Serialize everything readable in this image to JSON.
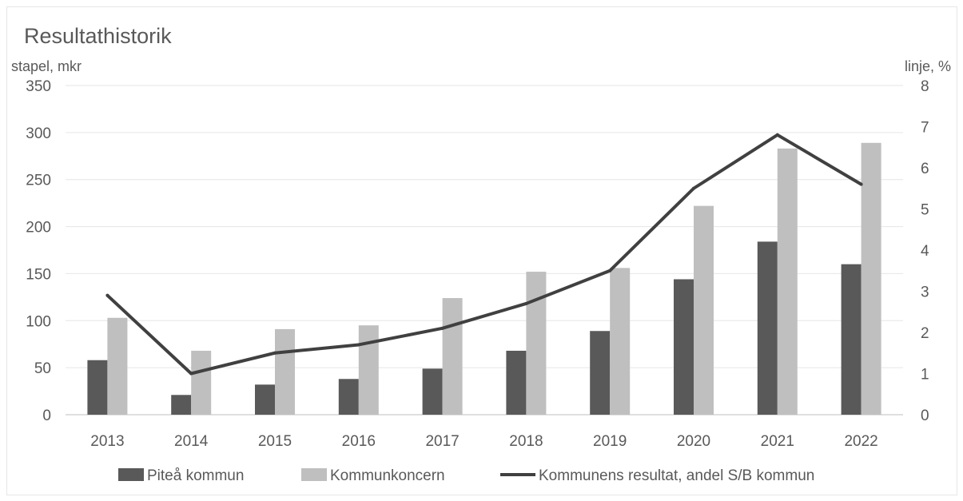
{
  "chart_data": {
    "type": "bar",
    "title": "Resultathistorik",
    "ylabel": "stapel, mkr",
    "y2label": "linje, %",
    "categories": [
      "2013",
      "2014",
      "2015",
      "2016",
      "2017",
      "2018",
      "2019",
      "2020",
      "2021",
      "2022"
    ],
    "ylim": [
      0,
      350
    ],
    "yticks": [
      0,
      50,
      100,
      150,
      200,
      250,
      300,
      350
    ],
    "y2lim": [
      0,
      8
    ],
    "y2ticks": [
      0,
      1,
      2,
      3,
      4,
      5,
      6,
      7,
      8
    ],
    "grid": true,
    "legend": "bottom",
    "series": [
      {
        "name": "Piteå kommun",
        "type": "bar",
        "axis": "left",
        "color": "#595959",
        "values": [
          58,
          21,
          32,
          38,
          49,
          68,
          89,
          144,
          184,
          160
        ]
      },
      {
        "name": "Kommunkoncern",
        "type": "bar",
        "axis": "left",
        "color": "#bfbfbf",
        "values": [
          103,
          68,
          91,
          95,
          124,
          152,
          156,
          222,
          283,
          289
        ]
      },
      {
        "name": "Kommunens resultat, andel S/B kommun",
        "type": "line",
        "axis": "right",
        "color": "#404040",
        "values": [
          2.9,
          1.0,
          1.5,
          1.7,
          2.1,
          2.7,
          3.5,
          5.5,
          6.8,
          5.6
        ]
      }
    ]
  }
}
